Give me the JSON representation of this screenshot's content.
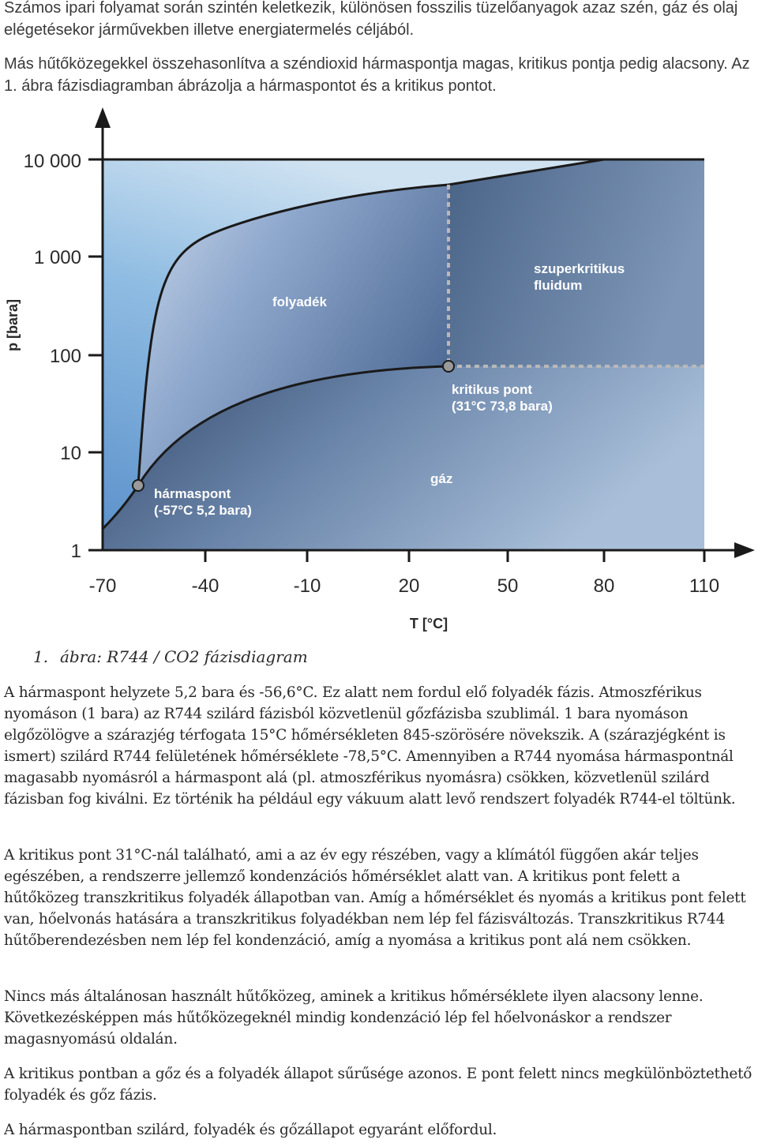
{
  "intro": {
    "p1": "Számos ipari folyamat során szintén keletkezik, különösen fosszilis tüzelőanyagok azaz szén, gáz és olaj elégetésekor járművekben illetve energiatermelés céljából.",
    "p2": "Más hűtőközegekkel összehasonlítva a széndioxid hármaspontja magas, kritikus pontja pedig alacsony. Az 1. ábra fázisdiagramban ábrázolja a hármaspontot és a kritikus pontot."
  },
  "figure": {
    "caption_number": "1.",
    "caption_text": "ábra: R744 / CO2 fázisdiagram",
    "ylabel": "p [bara]",
    "xlabel": "T [°C]",
    "x_ticks": [
      "-70",
      "-40",
      "-10",
      "20",
      "50",
      "80",
      "110"
    ],
    "y_ticks": [
      "1",
      "10",
      "100",
      "1 000",
      "10 000"
    ],
    "region_liquid": "folyadék",
    "region_gas": "gáz",
    "region_supercritical_1": "szuperkritikus",
    "region_supercritical_2": "fluidum",
    "triple_label_1": "hármaspont",
    "triple_label_2": "(-57°C  5,2 bara)",
    "critical_label_1": "kritikus pont",
    "critical_label_2": "(31°C  73,8 bara)",
    "colors": {
      "gas_region": "#4f6688",
      "liquid_region": "#7d9cc6",
      "solid_region": "#9dc0e0",
      "supercritical_region": "#5a7597",
      "curve": "#1a1a1a",
      "point_fill": "#9a9a9a",
      "dash": "#bbbbbb"
    }
  },
  "body": {
    "p1": "A hármaspont helyzete 5,2 bara és -56,6°C. Ez alatt nem fordul elő folyadék fázis. Atmoszférikus nyomáson (1 bara) az R744 szilárd fázisból közvetlenül gőzfázisba szublimál. 1 bara nyomáson elgőzölögve a szárazjég térfogata 15°C hőmérsékleten 845-szörösére növekszik. A (szárazjégként is ismert) szilárd R744 felületének hőmérséklete -78,5°C. Amennyiben a R744 nyomása hármaspontnál magasabb nyomásról a hármaspont alá (pl. atmoszférikus nyomásra) csökken, közvetlenül szilárd fázisban fog kiválni. Ez történik ha például egy vákuum alatt levő rendszert folyadék R744-el töltünk.",
    "p2": "A kritikus pont 31°C-nál található, ami a az év egy részében, vagy a klímától függően akár teljes egészében, a rendszerre jellemző kondenzációs hőmérséklet alatt van.  A kritikus pont felett a hűtőközeg transzkritikus folyadék állapotban van. Amíg a hőmérséklet és nyomás a kritikus pont felett van, hőelvonás hatására a transzkritikus folyadékban nem lép fel fázisváltozás. Transzkritikus R744 hűtőberendezésben nem lép fel kondenzáció, amíg a nyomása a kritikus pont alá nem csökken.",
    "p3": "Nincs más általánosan használt hűtőközeg, aminek a kritikus hőmérséklete ilyen alacsony lenne. Következésképpen más hűtőközegeknél mindig kondenzáció lép fel hőelvonáskor a rendszer magasnyomású oldalán.",
    "p4": "A kritikus pontban a gőz és a folyadék állapot sűrűsége azonos. E pont felett nincs megkülönböztethető folyadék és gőz fázis.",
    "p5": "A hármaspontban szilárd, folyadék és gőzállapot egyaránt előfordul."
  }
}
